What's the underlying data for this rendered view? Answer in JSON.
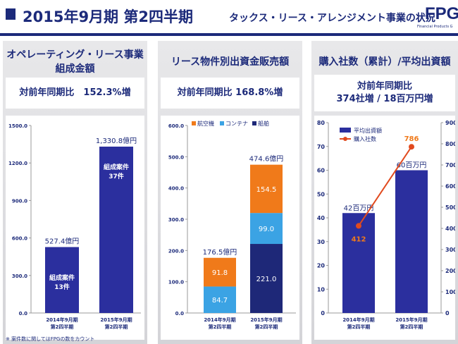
{
  "header": {
    "title": "2015年9月期 第2四半期",
    "subtitle": "タックス・リース・アレンジメント事業の状況",
    "logo": "FPG",
    "logo_sub": "Financial Products G"
  },
  "panels": [
    {
      "title_lines": [
        "オペレーティング・リース事業",
        "組成金額"
      ],
      "stat_lines": [
        "対前年同期比　152.3%増"
      ]
    },
    {
      "title_lines": [
        "リース物件別出資金販売額"
      ],
      "stat_lines": [
        "対前年同期比 168.8%増"
      ]
    },
    {
      "title_lines": [
        "購入社数（累計）/平均出資額"
      ],
      "stat_lines": [
        "対前年同期比",
        "374社増 / 18百万円増"
      ]
    }
  ],
  "footnote": "※ 案件数に関してはFPGの数をカウント",
  "colors": {
    "navy": "#1c2a7a",
    "bar": "#2b2f9e",
    "orange": "#f07a1a",
    "blue": "#3ba3e4",
    "dark": "#1e2878",
    "line": "#e14a1e"
  },
  "chart_data": [
    {
      "type": "bar",
      "categories": [
        [
          "2014年9月期",
          "第2四半期"
        ],
        [
          "2015年9月期",
          "第2四半期"
        ]
      ],
      "values": [
        527.4,
        1330.8
      ],
      "value_labels": [
        "527.4億円",
        "1,330.8億円"
      ],
      "inner_labels": [
        [
          "組成案件",
          "13件"
        ],
        [
          "組成案件",
          "37件"
        ]
      ],
      "ylim": [
        0,
        1500
      ],
      "yticks": [
        0,
        300,
        600,
        900,
        1200,
        1500
      ],
      "ytick_labels": [
        "0.0",
        "300.0",
        "600.0",
        "900.0",
        "1200.0",
        "1500.0"
      ]
    },
    {
      "type": "bar",
      "stacked": true,
      "categories": [
        [
          "2014年9月期",
          "第2四半期"
        ],
        [
          "2015年9月期",
          "第2四半期"
        ]
      ],
      "series": [
        {
          "name": "船舶",
          "color": "#1e2878",
          "values": [
            0,
            221.0
          ],
          "labels": [
            "",
            "221.0"
          ]
        },
        {
          "name": "コンテナ",
          "color": "#3ba3e4",
          "values": [
            84.7,
            99.0
          ],
          "labels": [
            "84.7",
            "99.0"
          ]
        },
        {
          "name": "航空機",
          "color": "#f07a1a",
          "values": [
            91.8,
            154.5
          ],
          "labels": [
            "91.8",
            "154.5"
          ]
        }
      ],
      "legend": [
        "航空機",
        "コンテナ",
        "船舶"
      ],
      "totals": [
        "176.5億円",
        "474.6億円"
      ],
      "ylim": [
        0,
        600
      ],
      "yticks": [
        0,
        100,
        200,
        300,
        400,
        500,
        600
      ],
      "ytick_labels": [
        "0.0",
        "100.0",
        "200.0",
        "300.0",
        "400.0",
        "500.0",
        "600.0"
      ]
    },
    {
      "type": "bar+line",
      "categories": [
        [
          "2014年9月期",
          "第2四半期"
        ],
        [
          "2015年9月期",
          "第2四半期"
        ]
      ],
      "bar_series": {
        "name": "平均出資額",
        "values": [
          42,
          60
        ],
        "labels": [
          "42百万円",
          "60百万円"
        ]
      },
      "line_series": {
        "name": "購入社数",
        "values": [
          412,
          786
        ],
        "labels": [
          "412",
          "786"
        ]
      },
      "ylim_left": [
        0,
        80
      ],
      "yticks_left": [
        "0",
        "10",
        "20",
        "30",
        "40",
        "50",
        "60",
        "70",
        "80"
      ],
      "ylim_right": [
        0,
        900
      ],
      "yticks_right": [
        "0",
        "100",
        "200",
        "300",
        "400",
        "500",
        "600",
        "700",
        "800",
        "900"
      ]
    }
  ]
}
